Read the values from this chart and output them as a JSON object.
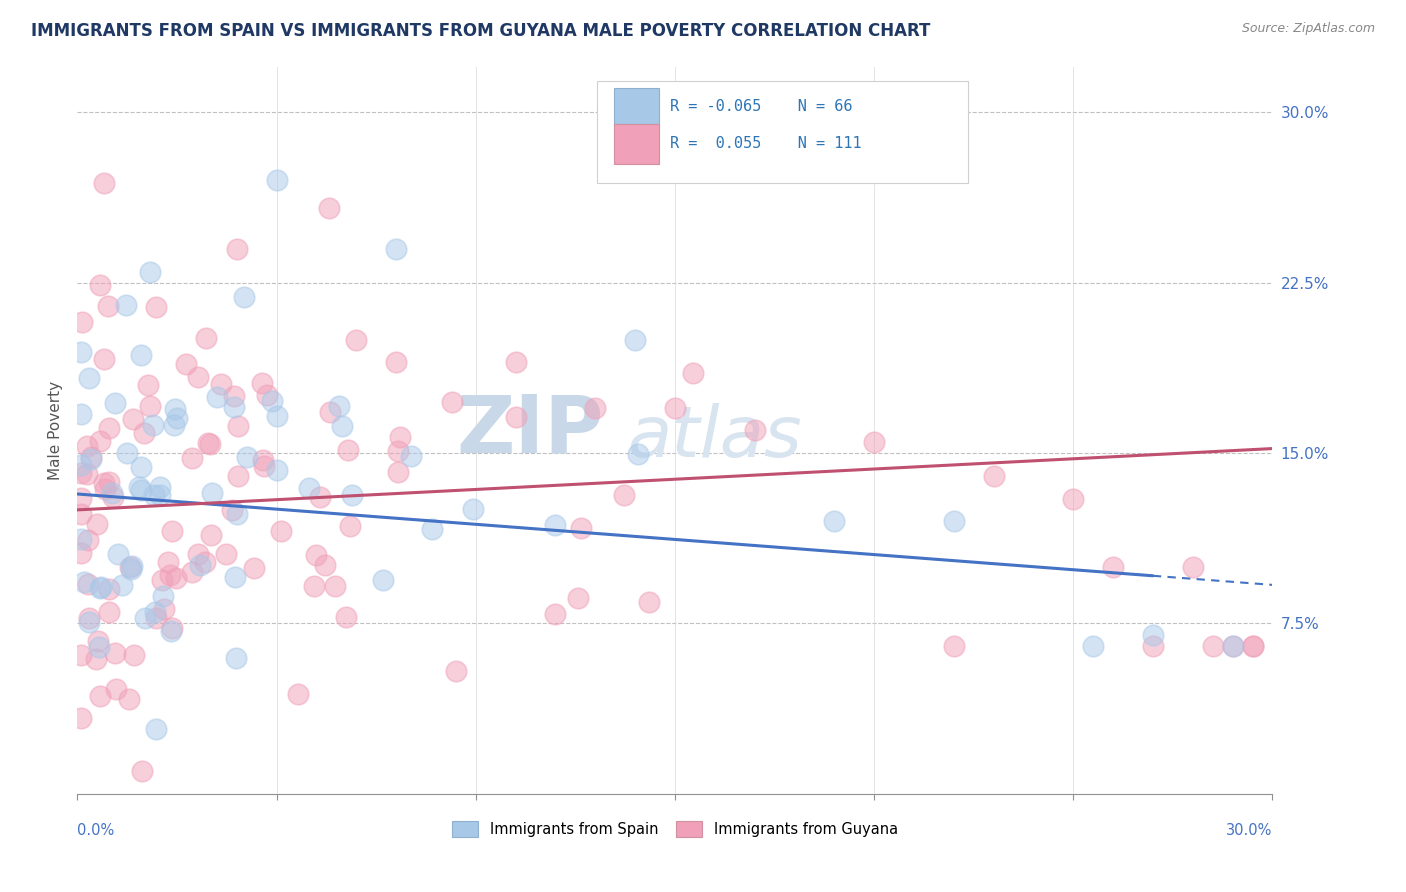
{
  "title": "IMMIGRANTS FROM SPAIN VS IMMIGRANTS FROM GUYANA MALE POVERTY CORRELATION CHART",
  "source": "Source: ZipAtlas.com",
  "ylabel": "Male Poverty",
  "ytick_labels": [
    "7.5%",
    "15.0%",
    "22.5%",
    "30.0%"
  ],
  "ytick_values": [
    0.075,
    0.15,
    0.225,
    0.3
  ],
  "xlim": [
    0.0,
    0.3
  ],
  "ylim": [
    0.0,
    0.32
  ],
  "legend_r1": "R = -0.065",
  "legend_n1": "N = 66",
  "legend_r2": "R =  0.055",
  "legend_n2": "N = 111",
  "color_spain": "#a8c8e8",
  "color_guyana": "#f0a0b8",
  "color_trendline_spain": "#4472c4",
  "color_trendline_guyana": "#c05070",
  "color_title": "#1f3864",
  "color_axis_labels": "#4472c4",
  "color_legend_text": "#2e75b6",
  "watermark_zip": "ZIP",
  "watermark_atlas": "atlas",
  "watermark_color": "#c8d8e8"
}
